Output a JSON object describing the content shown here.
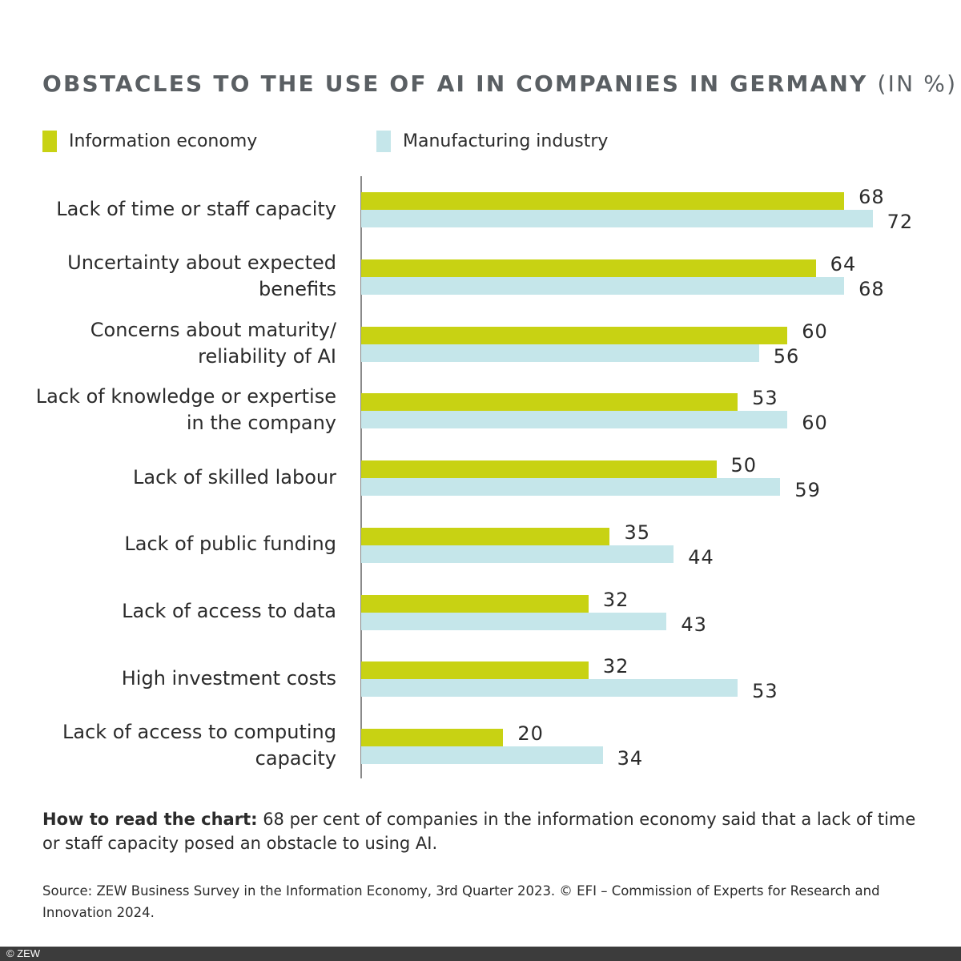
{
  "chart_data": {
    "type": "bar",
    "orientation": "horizontal",
    "title": "OBSTACLES TO THE USE OF AI IN COMPANIES IN GERMANY",
    "unit": "(IN %)",
    "categories": [
      [
        "Lack of time or staff capacity"
      ],
      [
        "Uncertainty about expected",
        "benefits"
      ],
      [
        "Concerns about maturity/",
        "reliability of AI"
      ],
      [
        "Lack of knowledge or expertise",
        "in the company"
      ],
      [
        "Lack of skilled labour"
      ],
      [
        "Lack of public funding"
      ],
      [
        "Lack of access to data"
      ],
      [
        "High investment costs"
      ],
      [
        "Lack of access to computing",
        "capacity"
      ]
    ],
    "series": [
      {
        "name": "Information economy",
        "color": "#c8d213",
        "values": [
          68,
          64,
          60,
          53,
          50,
          35,
          32,
          32,
          20
        ]
      },
      {
        "name": "Manufacturing industry",
        "color": "#c5e6ea",
        "values": [
          72,
          68,
          56,
          60,
          59,
          44,
          43,
          53,
          34
        ]
      }
    ],
    "xlim": [
      0,
      80
    ],
    "grid": false,
    "legend_position": "top-left",
    "data_labels": true
  },
  "note": {
    "bold": "How to read the chart:",
    "text": " 68 per cent of companies in the information economy said that a lack of time or staff capacity posed an obstacle to using AI."
  },
  "source": "Source: ZEW Business Survey in the Information Economy, 3rd Quarter 2023. © EFI – Commission of Experts for Research and Innovation 2024.",
  "footer": "© ZEW"
}
